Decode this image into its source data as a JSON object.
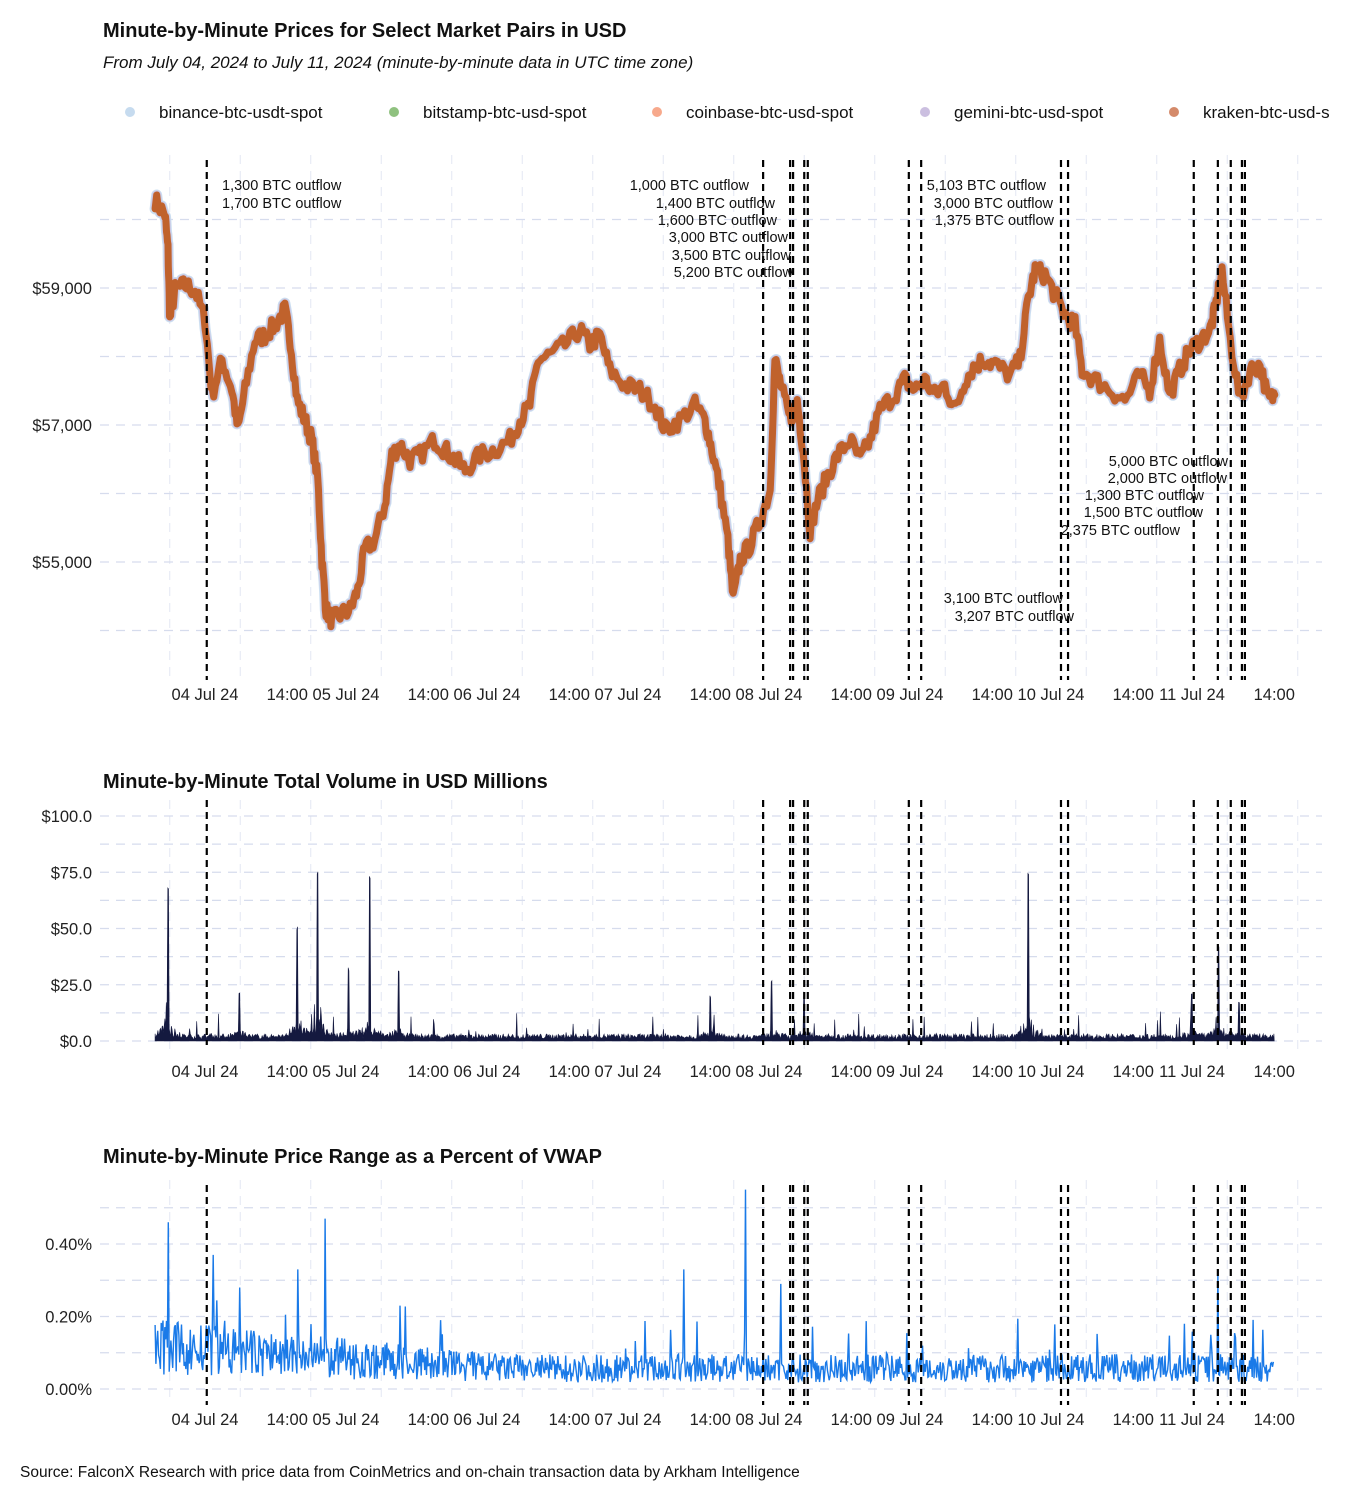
{
  "title": "Minute-by-Minute Prices for Select Market Pairs in USD",
  "subtitle": "From July 04, 2024 to July 11, 2024 (minute-by-minute data in UTC time zone)",
  "source": "Source: FalconX Research with price data from CoinMetrics and on-chain transaction data by Arkham Intelligence",
  "legend": [
    {
      "label": "binance-btc-usdt-spot",
      "color": "#c6dbef"
    },
    {
      "label": "bitstamp-btc-usd-spot",
      "color": "#8fc17f"
    },
    {
      "label": "coinbase-btc-usd-spot",
      "color": "#f7a98c"
    },
    {
      "label": "gemini-btc-usd-spot",
      "color": "#cbbfe0"
    },
    {
      "label": "kraken-btc-usd-s",
      "color": "#d48a6a"
    }
  ],
  "x_ticks": [
    "04 Jul 24",
    "14:00",
    "05 Jul 24",
    "14:00",
    "06 Jul 24",
    "14:00",
    "07 Jul 24",
    "14:00",
    "08 Jul 24",
    "14:00",
    "09 Jul 24",
    "14:00",
    "10 Jul 24",
    "14:00",
    "11 Jul 24",
    "14:00"
  ],
  "event_hours_since_jul04": [
    0.3,
    95.0,
    99.6,
    100.1,
    102.0,
    102.6,
    119.8,
    121.9,
    145.7,
    146.9,
    168.3,
    172.4,
    174.6,
    176.5,
    177.0
  ],
  "chart_data": [
    {
      "type": "line",
      "title": "Minute-by-Minute Prices for Select Market Pairs in USD",
      "xlabel": "",
      "ylabel": "",
      "x_unit": "hours since 2024-07-04 00:00 UTC",
      "ylim": [
        53600,
        60700
      ],
      "y_ticks": [
        "$55,000",
        "$57,000",
        "$59,000"
      ],
      "y_tick_values": [
        55000,
        57000,
        59000
      ],
      "color": "#c0622c",
      "x": [
        -8.5,
        -6.8,
        -6.3,
        -6.0,
        -5.1,
        -3.4,
        -1.7,
        0,
        1.2,
        2.9,
        4.6,
        5.6,
        6.8,
        8.5,
        10.2,
        11.9,
        13.6,
        14.5,
        15.7,
        17.0,
        18.2,
        19.2,
        19.9,
        20.6,
        21.6,
        23.0,
        24.7,
        26.0,
        27.2,
        28.9,
        30.6,
        31.8,
        33.2,
        34.9,
        36.6,
        39.1,
        40.8,
        42.6,
        44.3,
        46.8,
        49.4,
        51.9,
        53.6,
        55.3,
        56.7,
        58.7,
        61.3,
        63.8,
        65.5,
        67.2,
        68.9,
        71.5,
        74.0,
        76.6,
        78.3,
        80.8,
        83.4,
        85.1,
        86.3,
        87.7,
        89.0,
        89.9,
        91.1,
        92.8,
        94.5,
        96.2,
        97.0,
        98.2,
        99.6,
        100.8,
        101.8,
        103.0,
        104.3,
        106.0,
        107.7,
        109.8,
        111.5,
        113.2,
        114.9,
        117.4,
        119.1,
        120.8,
        122.5,
        124.2,
        125.9,
        127.7,
        129.4,
        131.1,
        132.8,
        134.5,
        137.0,
        138.7,
        140.1,
        141.3,
        143.0,
        144.7,
        146.4,
        148.1,
        149.3,
        151.5,
        154.0,
        156.6,
        159.1,
        160.8,
        162.5,
        164.2,
        165.9,
        167.6,
        169.4,
        171.1,
        171.9,
        173.1,
        174.5,
        176.2,
        177.9,
        179.6,
        181.0,
        182.1
      ],
      "y": [
        60285,
        60065,
        59555,
        58530,
        58970,
        59040,
        58970,
        58530,
        57440,
        57950,
        57510,
        56930,
        57510,
        58240,
        58310,
        58460,
        58680,
        58240,
        57360,
        57070,
        56780,
        56200,
        55030,
        54300,
        54150,
        54230,
        54300,
        54590,
        55180,
        55320,
        55830,
        56560,
        56710,
        56490,
        56560,
        56780,
        56640,
        56490,
        56340,
        56560,
        56640,
        56780,
        57070,
        57290,
        57950,
        58020,
        58170,
        58390,
        58170,
        58310,
        57800,
        57580,
        57510,
        57290,
        56930,
        57070,
        57290,
        57070,
        56640,
        56050,
        55320,
        54450,
        55030,
        55250,
        55610,
        56050,
        57950,
        57510,
        57070,
        57360,
        56640,
        55470,
        55910,
        56270,
        56560,
        56780,
        56490,
        56780,
        57220,
        57440,
        57660,
        57510,
        57660,
        57440,
        57580,
        57220,
        57660,
        57880,
        57950,
        57880,
        57730,
        57950,
        58820,
        59260,
        59190,
        58900,
        58610,
        58460,
        57800,
        57660,
        57510,
        57360,
        57730,
        57510,
        58240,
        57440,
        57800,
        58090,
        58240,
        58390,
        58680,
        59260,
        58240,
        57360,
        57800,
        57880,
        57360,
        57440
      ],
      "annotations": [
        "1,300 BTC outflow",
        "1,700 BTC outflow",
        "1,000 BTC outflow",
        "1,400 BTC outflow",
        "1,600 BTC outflow",
        "3,000 BTC outflow",
        "3,500 BTC outflow",
        "5,200 BTC outflow",
        "5,103 BTC outflow",
        "3,000 BTC outflow",
        "1,375 BTC outflow",
        "5,000 BTC outflow",
        "2,000 BTC outflow",
        "1,300 BTC outflow",
        "1,500 BTC outflow",
        "2,375 BTC outflow",
        "3,100 BTC outflow",
        "3,207 BTC outflow"
      ]
    },
    {
      "type": "area",
      "title": "Minute-by-Minute Total Volume in USD Millions",
      "ylim": [
        0,
        100
      ],
      "y_ticks": [
        "$0.0",
        "$25.0",
        "$50.0",
        "$75.0",
        "$100.0"
      ],
      "y_tick_values": [
        0,
        25,
        50,
        75,
        100
      ],
      "color": "#14193f",
      "baseline": 2,
      "spikes_x": [
        -6.3,
        5.9,
        15.7,
        19.2,
        24.5,
        28.0,
        33.0,
        86.0,
        96.5,
        102.0,
        140.1,
        168.0,
        172.5,
        176.0
      ],
      "spikes_y": [
        65,
        20,
        48,
        73,
        30,
        70,
        28,
        18,
        25,
        20,
        72,
        20,
        40,
        15
      ]
    },
    {
      "type": "line",
      "title": "Minute-by-Minute Price Range as a Percent of VWAP",
      "ylim": [
        0,
        0.56
      ],
      "y_ticks": [
        "0.00%",
        "0.20%",
        "0.40%"
      ],
      "y_tick_values": [
        0,
        0.2,
        0.4
      ],
      "color": "#1a7ae8",
      "baseline_start": 0.12,
      "baseline_end": 0.06,
      "spikes_x": [
        -6.3,
        1.4,
        5.9,
        15.8,
        20.4,
        33.2,
        81.5,
        92.0,
        98.0,
        172.4,
        182.0
      ],
      "spikes_y": [
        0.46,
        0.37,
        0.28,
        0.33,
        0.47,
        0.23,
        0.33,
        0.55,
        0.29,
        0.32,
        0.37
      ]
    }
  ]
}
